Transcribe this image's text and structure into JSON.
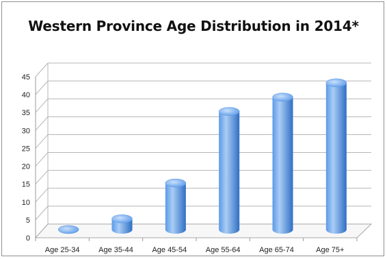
{
  "chart_data": {
    "type": "bar",
    "title": "Western Province Age Distribution in 2014*",
    "categories": [
      "Age 25-34",
      "Age 35-44",
      "Age 45-54",
      "Age 55-64",
      "Age 65-74",
      "Age 75+"
    ],
    "values": [
      0,
      3,
      13,
      33,
      37,
      41
    ],
    "ylim": [
      0,
      45
    ],
    "yticks": [
      0,
      5,
      10,
      15,
      20,
      25,
      30,
      35,
      40,
      45
    ],
    "grid": true,
    "style": "3d-cylinder",
    "colors": {
      "bar_light": "#a9cdf5",
      "bar_mid": "#5b9ae8",
      "bar_dark": "#2f6fc4",
      "grid": "#b5b5b5"
    }
  }
}
